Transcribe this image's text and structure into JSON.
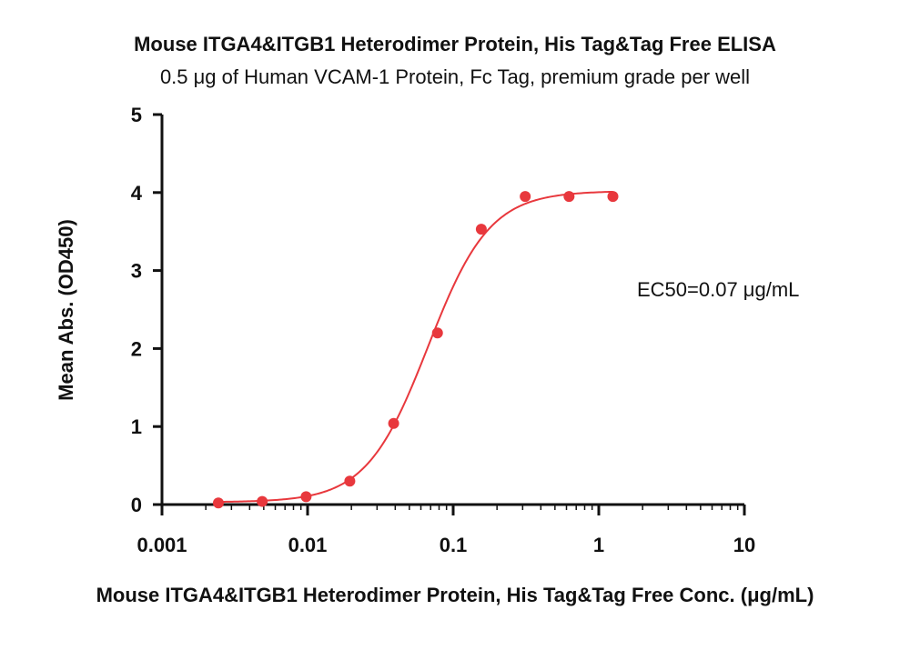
{
  "chart_data": {
    "type": "scatter",
    "title": "Mouse ITGA4&ITGB1 Heterodimer Protein, His Tag&Tag Free ELISA",
    "subtitle": "0.5 μg of Human VCAM-1 Protein, Fc Tag, premium grade per well",
    "xlabel": "Mouse ITGA4&ITGB1 Heterodimer Protein, His Tag&Tag Free Conc. (μg/mL)",
    "ylabel": "Mean Abs. (OD450)",
    "x_scale": "log",
    "xlim": [
      0.001,
      10
    ],
    "ylim": [
      0,
      5
    ],
    "x_ticks": [
      0.001,
      0.01,
      0.1,
      1,
      10
    ],
    "x_tick_labels": [
      "0.001",
      "0.01",
      "0.1",
      "1",
      "10"
    ],
    "y_ticks": [
      0,
      1,
      2,
      3,
      4,
      5
    ],
    "y_tick_labels": [
      "0",
      "1",
      "2",
      "3",
      "4",
      "5"
    ],
    "grid": false,
    "series": [
      {
        "x": [
          0.00244,
          0.00488,
          0.00977,
          0.0195,
          0.039,
          0.078,
          0.156,
          0.3125,
          0.625,
          1.25
        ],
        "y": [
          0.02,
          0.04,
          0.1,
          0.3,
          1.04,
          2.2,
          3.53,
          3.95,
          3.95,
          3.95
        ],
        "fit": "4PL sigmoidal curve",
        "color": "#e8383d"
      }
    ],
    "annotations": [
      {
        "text": "EC50=0.07 μg/mL"
      }
    ]
  }
}
